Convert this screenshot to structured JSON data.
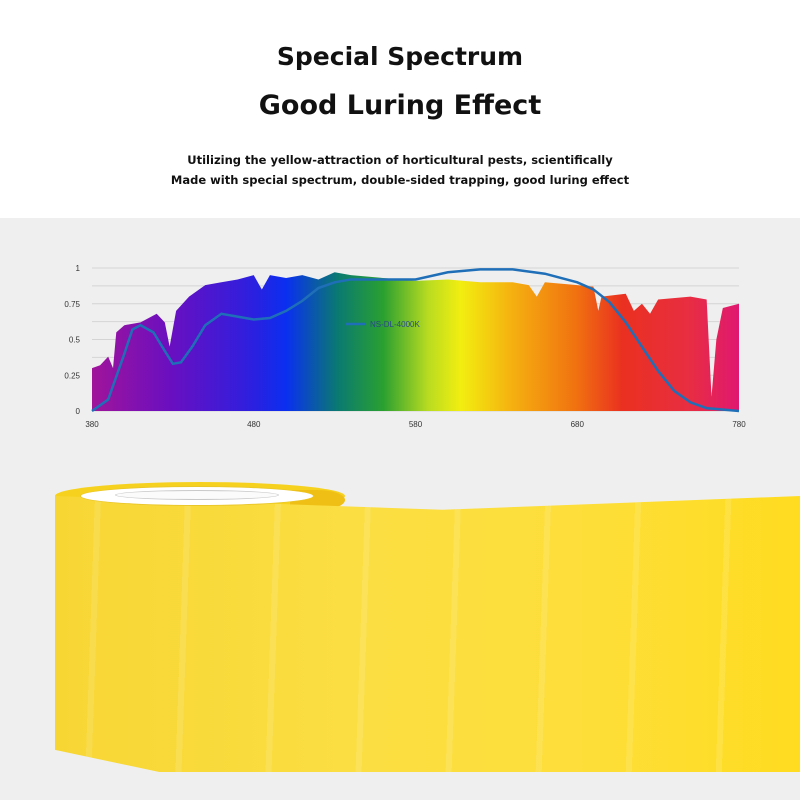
{
  "header": {
    "title": "Special Spectrum",
    "subtitle": "Good Luring Effect",
    "desc_line1": "Utilizing the yellow-attraction of horticultural pests, scientifically",
    "desc_line2": "Made with special spectrum, double-sided trapping, good luring effect"
  },
  "chart_data": {
    "type": "line",
    "title": "",
    "xlabel": "",
    "ylabel": "",
    "xlim": [
      380,
      780
    ],
    "ylim": [
      0,
      1
    ],
    "x_ticks": [
      "380",
      "480",
      "580",
      "680",
      "780"
    ],
    "y_ticks": [
      "0",
      "0.25",
      "0.5",
      "0.75",
      "1"
    ],
    "grid": true,
    "legend": "center",
    "background_spectrum": {
      "type": "area",
      "x": [
        380,
        385,
        390,
        393,
        395,
        400,
        410,
        420,
        425,
        428,
        432,
        440,
        450,
        460,
        470,
        480,
        485,
        490,
        500,
        510,
        520,
        530,
        540,
        560,
        580,
        600,
        620,
        640,
        650,
        655,
        660,
        680,
        690,
        693,
        695,
        710,
        715,
        720,
        725,
        730,
        750,
        760,
        763,
        766,
        770,
        780
      ],
      "y": [
        0.3,
        0.32,
        0.38,
        0.3,
        0.55,
        0.6,
        0.62,
        0.68,
        0.62,
        0.45,
        0.7,
        0.8,
        0.88,
        0.9,
        0.92,
        0.95,
        0.85,
        0.95,
        0.93,
        0.95,
        0.92,
        0.97,
        0.95,
        0.93,
        0.91,
        0.92,
        0.9,
        0.9,
        0.88,
        0.8,
        0.9,
        0.88,
        0.87,
        0.7,
        0.8,
        0.82,
        0.7,
        0.75,
        0.68,
        0.78,
        0.8,
        0.78,
        0.1,
        0.5,
        0.72,
        0.75
      ]
    },
    "series": [
      {
        "name": "NS-DL-4000K",
        "color": "#1f6fb8",
        "x": [
          380,
          390,
          400,
          405,
          410,
          418,
          425,
          430,
          435,
          442,
          450,
          460,
          470,
          480,
          490,
          500,
          510,
          520,
          530,
          540,
          560,
          580,
          600,
          620,
          640,
          660,
          680,
          690,
          700,
          710,
          720,
          730,
          740,
          750,
          760,
          780
        ],
        "y": [
          0,
          0.08,
          0.4,
          0.57,
          0.6,
          0.55,
          0.42,
          0.33,
          0.34,
          0.45,
          0.6,
          0.68,
          0.66,
          0.64,
          0.65,
          0.7,
          0.77,
          0.86,
          0.9,
          0.92,
          0.92,
          0.92,
          0.97,
          0.99,
          0.99,
          0.96,
          0.9,
          0.85,
          0.76,
          0.62,
          0.45,
          0.28,
          0.14,
          0.06,
          0.02,
          0
        ]
      }
    ]
  }
}
